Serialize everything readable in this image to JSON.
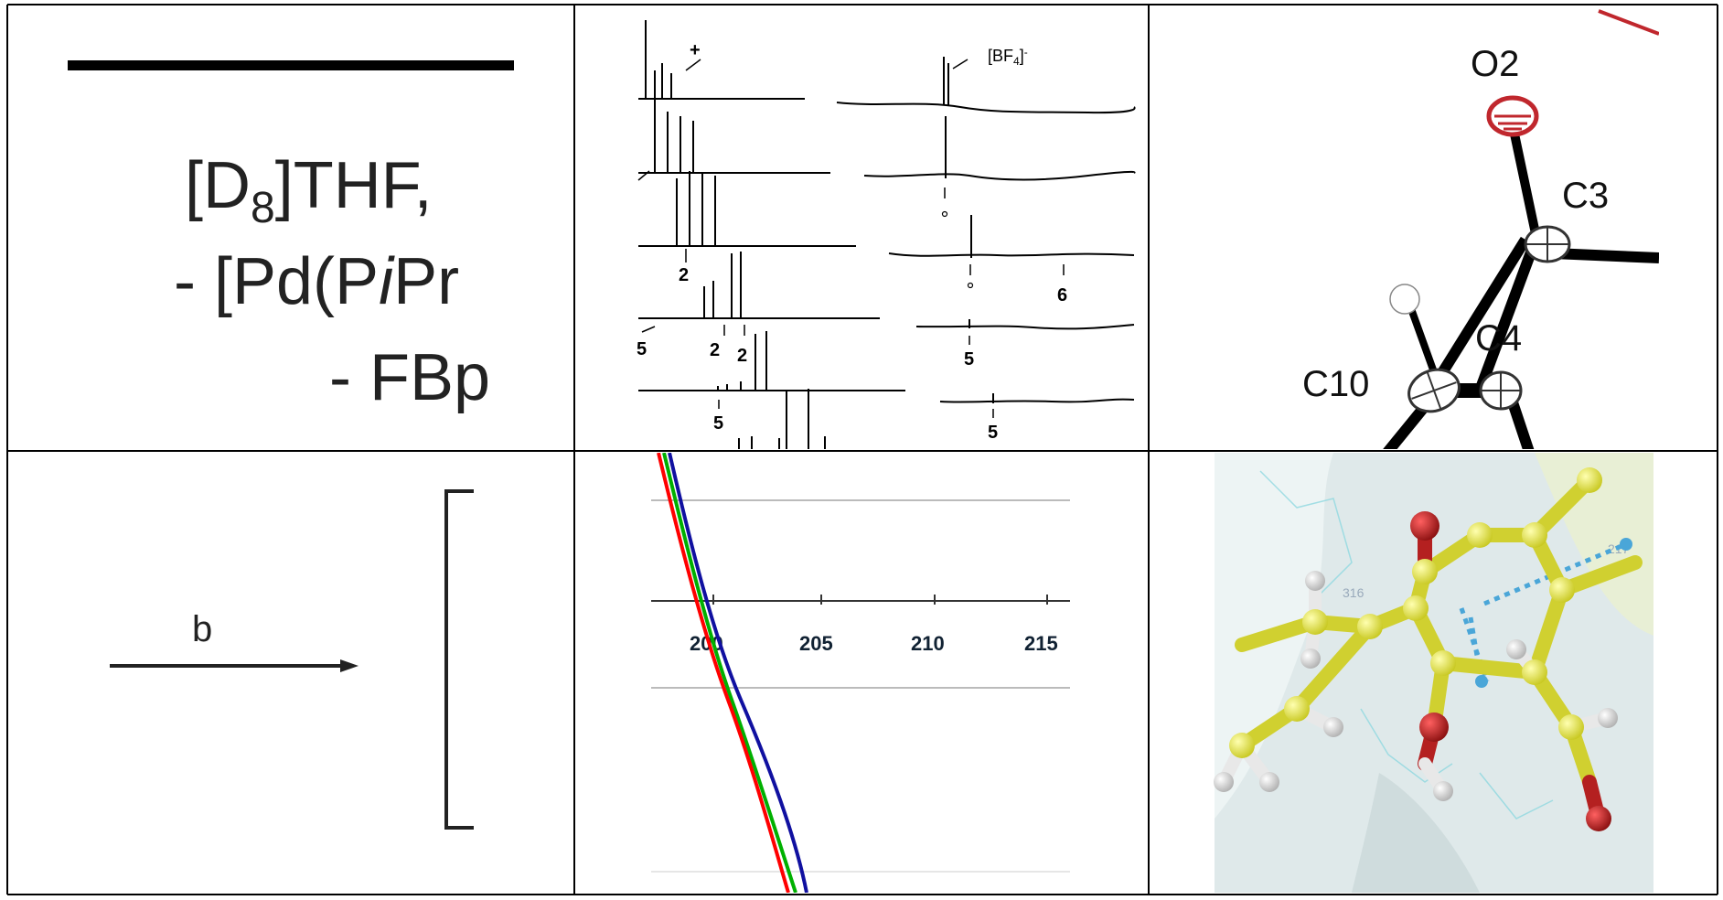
{
  "panel_reaction": {
    "line1_prefix": "[D",
    "line1_sub": "8",
    "line1_suffix": "]THF,",
    "line2_prefix": "- [Pd(P",
    "line2_italic": "i",
    "line2_suffix": "Pr",
    "line3": "- FBp"
  },
  "panel_nmr": {
    "plus_label": "+",
    "bf4_label": "[BF",
    "bf4_sub": "4",
    "bf4_sup": "]",
    "bf4_charge": "-",
    "labels_left": [
      "2",
      "5",
      "2",
      "2",
      "5"
    ],
    "labels_right": [
      "6",
      "5",
      "5"
    ]
  },
  "panel_ortep": {
    "atoms": [
      "O2",
      "C3",
      "C4",
      "C10"
    ],
    "colors": {
      "oxygen": "#c0272d",
      "carbon": "#ffffff",
      "bond": "#000000"
    }
  },
  "panel_arrow": {
    "arrow_label": "b"
  },
  "panel_plot": {
    "tick_labels": [
      "200",
      "205",
      "210",
      "215"
    ],
    "curve_colors": {
      "red": "#ff0000",
      "green": "#00b000",
      "blue": "#1010a0"
    }
  },
  "panel_molecule": {
    "residue_labels": [
      "316",
      "217"
    ],
    "colors": {
      "carbon": "#e6e64a",
      "oxygen": "#b42020",
      "hydrogen": "#e8e8e8",
      "surface": "#dfe9ea",
      "hbond": "#4aa6d8"
    }
  }
}
